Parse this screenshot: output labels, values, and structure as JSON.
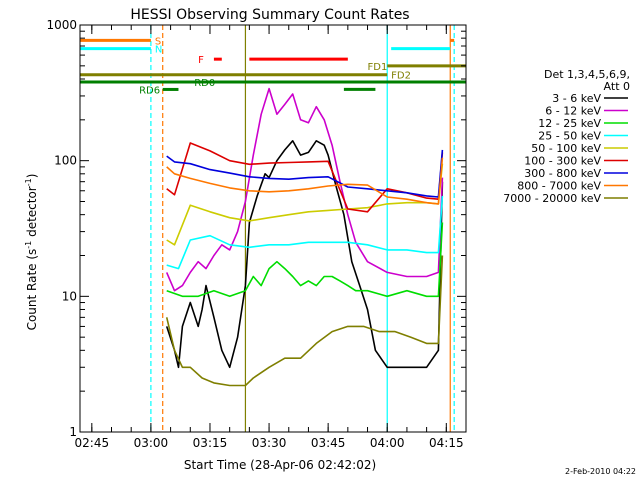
{
  "chart_data": {
    "type": "line",
    "title": "HESSI Observing Summary Count Rates",
    "xlabel": "Start Time (28-Apr-06 02:42:02)",
    "ylabel": "Count Rate (s",
    "ylabel_sup1": "-1",
    "ylabel_mid": " detector",
    "ylabel_sup2": "-1",
    "ylabel_end": ")",
    "y_scale": "log",
    "xlim": [
      "02:42",
      "04:20"
    ],
    "ylim": [
      1,
      1000
    ],
    "x_ticks": [
      "02:45",
      "03:00",
      "03:15",
      "03:30",
      "03:45",
      "04:00",
      "04:15"
    ],
    "y_ticks": [
      {
        "value": 1,
        "label": "1"
      },
      {
        "value": 10,
        "label": "10"
      },
      {
        "value": 100,
        "label": "100"
      },
      {
        "value": 1000,
        "label": "1000"
      }
    ],
    "legend_title_1": "Det 1,3,4,5,6,9,",
    "legend_title_2": "Att 0",
    "legend_position": "right",
    "date_stamp": "2-Feb-2010 04:22",
    "series": [
      {
        "name": "3 - 6 keV",
        "color": "#000000",
        "x": [
          "03:04",
          "03:06",
          "03:07",
          "03:08",
          "03:10",
          "03:12",
          "03:13",
          "03:14",
          "03:16",
          "03:18",
          "03:20",
          "03:22",
          "03:24",
          "03:25",
          "03:27",
          "03:29",
          "03:30",
          "03:32",
          "03:34",
          "03:36",
          "03:38",
          "03:40",
          "03:42",
          "03:44",
          "03:45",
          "03:47",
          "03:49",
          "03:51",
          "03:53",
          "03:55",
          "03:57",
          "04:00",
          "04:05",
          "04:10",
          "04:13",
          "04:14"
        ],
        "values": [
          6,
          4,
          3,
          6,
          9,
          6,
          8,
          12,
          7,
          4,
          3,
          5,
          12,
          35,
          55,
          80,
          75,
          100,
          120,
          140,
          110,
          115,
          140,
          130,
          110,
          65,
          40,
          18,
          12,
          8,
          4,
          3,
          3,
          3,
          4,
          70
        ]
      },
      {
        "name": "6 - 12 keV",
        "color": "#cc00cc",
        "x": [
          "03:04",
          "03:06",
          "03:08",
          "03:10",
          "03:12",
          "03:14",
          "03:16",
          "03:18",
          "03:20",
          "03:22",
          "03:24",
          "03:26",
          "03:28",
          "03:30",
          "03:32",
          "03:34",
          "03:36",
          "03:38",
          "03:40",
          "03:42",
          "03:44",
          "03:46",
          "03:48",
          "03:50",
          "03:52",
          "03:55",
          "04:00",
          "04:05",
          "04:10",
          "04:13",
          "04:14"
        ],
        "values": [
          15,
          11,
          12,
          15,
          18,
          16,
          20,
          24,
          22,
          30,
          50,
          110,
          220,
          340,
          220,
          260,
          310,
          200,
          190,
          250,
          200,
          130,
          70,
          40,
          25,
          18,
          15,
          14,
          14,
          15,
          75
        ]
      },
      {
        "name": "12 - 25 keV",
        "color": "#00dd00",
        "x": [
          "03:04",
          "03:08",
          "03:12",
          "03:16",
          "03:20",
          "03:24",
          "03:26",
          "03:28",
          "03:30",
          "03:32",
          "03:34",
          "03:36",
          "03:38",
          "03:40",
          "03:42",
          "03:44",
          "03:46",
          "03:48",
          "03:50",
          "03:52",
          "03:55",
          "04:00",
          "04:05",
          "04:10",
          "04:13",
          "04:14"
        ],
        "values": [
          11,
          10,
          10,
          11,
          10,
          11,
          14,
          12,
          16,
          18,
          16,
          14,
          12,
          13,
          12,
          14,
          14,
          13,
          12,
          11,
          11,
          10,
          11,
          10,
          10,
          35
        ]
      },
      {
        "name": "25 - 50 keV",
        "color": "#00ffff",
        "x": [
          "03:04",
          "03:07",
          "03:10",
          "03:15",
          "03:20",
          "03:25",
          "03:30",
          "03:35",
          "03:40",
          "03:45",
          "03:50",
          "03:55",
          "04:00",
          "04:05",
          "04:10",
          "04:13",
          "04:14"
        ],
        "values": [
          17,
          16,
          26,
          28,
          24,
          23,
          24,
          24,
          25,
          25,
          25,
          24,
          22,
          22,
          21,
          21,
          55
        ]
      },
      {
        "name": "50 - 100 keV",
        "color": "#cccc00",
        "x": [
          "03:04",
          "03:06",
          "03:10",
          "03:15",
          "03:20",
          "03:25",
          "03:30",
          "03:35",
          "03:40",
          "03:45",
          "03:50",
          "03:55",
          "04:00",
          "04:05",
          "04:10",
          "04:13",
          "04:14"
        ],
        "values": [
          26,
          24,
          47,
          42,
          38,
          36,
          38,
          40,
          42,
          43,
          44,
          45,
          48,
          49,
          49,
          48,
          95
        ]
      },
      {
        "name": "100 - 300 keV",
        "color": "#dd0000",
        "x": [
          "03:04",
          "03:06",
          "03:10",
          "03:15",
          "03:20",
          "03:25",
          "03:30",
          "03:35",
          "03:40",
          "03:45",
          "03:50",
          "03:55",
          "04:00",
          "04:05",
          "04:10",
          "04:13",
          "04:14"
        ],
        "values": [
          62,
          56,
          135,
          118,
          100,
          94,
          96,
          97,
          98,
          99,
          44,
          42,
          62,
          58,
          53,
          52,
          115
        ]
      },
      {
        "name": "300 - 800 keV",
        "color": "#0000dd",
        "x": [
          "03:04",
          "03:06",
          "03:10",
          "03:15",
          "03:20",
          "03:25",
          "03:30",
          "03:35",
          "03:40",
          "03:45",
          "03:50",
          "03:55",
          "04:00",
          "04:05",
          "04:10",
          "04:13",
          "04:14"
        ],
        "values": [
          108,
          98,
          95,
          86,
          81,
          76,
          74,
          73,
          75,
          76,
          64,
          62,
          60,
          58,
          55,
          54,
          120
        ]
      },
      {
        "name": "800 - 7000 keV",
        "color": "#ff7700",
        "x": [
          "03:04",
          "03:06",
          "03:10",
          "03:15",
          "03:20",
          "03:25",
          "03:30",
          "03:35",
          "03:40",
          "03:45",
          "03:50",
          "03:55",
          "04:00",
          "04:05",
          "04:10",
          "04:13",
          "04:14"
        ],
        "values": [
          90,
          80,
          74,
          68,
          63,
          60,
          59,
          60,
          62,
          65,
          67,
          66,
          54,
          52,
          49,
          48,
          105
        ]
      },
      {
        "name": "7000 - 20000 keV",
        "color": "#7f7f00",
        "x": [
          "03:04",
          "03:06",
          "03:08",
          "03:10",
          "03:13",
          "03:16",
          "03:20",
          "03:24",
          "03:26",
          "03:30",
          "03:34",
          "03:38",
          "03:42",
          "03:46",
          "03:50",
          "03:54",
          "03:58",
          "04:02",
          "04:06",
          "04:10",
          "04:13",
          "04:14"
        ],
        "values": [
          7,
          4,
          3,
          3,
          2.5,
          2.3,
          2.2,
          2.2,
          2.5,
          3,
          3.5,
          3.5,
          4.5,
          5.5,
          6,
          6,
          5.5,
          5.5,
          5,
          4.5,
          4.5,
          20
        ]
      }
    ],
    "flag_bars": [
      {
        "label": "S",
        "color": "#ff7700",
        "segments": [
          [
            "02:42",
            "03:00"
          ],
          [
            "04:16",
            "04:17"
          ]
        ],
        "y": 770,
        "label_x": "03:01"
      },
      {
        "label": "N",
        "color": "#00ffff",
        "segments": [
          [
            "02:42",
            "03:00"
          ],
          [
            "04:01",
            "04:16"
          ]
        ],
        "y": 670,
        "label_x": "03:01"
      },
      {
        "label": "F",
        "color": "#ff0000",
        "segments": [
          [
            "03:16",
            "03:18"
          ],
          [
            "03:25",
            "03:50"
          ]
        ],
        "y": 560,
        "label_x": "03:12"
      },
      {
        "label": "FD1",
        "color": "#7f7f00",
        "segments": [
          [
            "04:00",
            "04:20"
          ]
        ],
        "y": 500,
        "label_x": "03:55"
      },
      {
        "label": "FD2",
        "color": "#7f7f00",
        "segments": [
          [
            "02:42",
            "04:00"
          ]
        ],
        "y": 430,
        "label_x": "04:01"
      },
      {
        "label": "RD0",
        "color": "#007f00",
        "segments": [
          [
            "02:42",
            "04:20"
          ]
        ],
        "y": 380,
        "label_x": "03:11"
      },
      {
        "label": "RD6",
        "color": "#007f00",
        "segments": [
          [
            "03:03",
            "03:07"
          ],
          [
            "03:49",
            "03:57"
          ]
        ],
        "y": 335,
        "label_x": "02:57"
      }
    ],
    "vertical_lines": [
      {
        "x": "03:00",
        "color": "#00ffff",
        "dashed": true
      },
      {
        "x": "03:03",
        "color": "#ff7700",
        "dashed": true
      },
      {
        "x": "03:24",
        "color": "#7f7f00",
        "dashed": false
      },
      {
        "x": "04:00",
        "color": "#00ffff",
        "dashed": false
      },
      {
        "x": "04:16",
        "color": "#ff7700",
        "dashed": false
      },
      {
        "x": "04:17",
        "color": "#00ffff",
        "dashed": true
      }
    ]
  }
}
